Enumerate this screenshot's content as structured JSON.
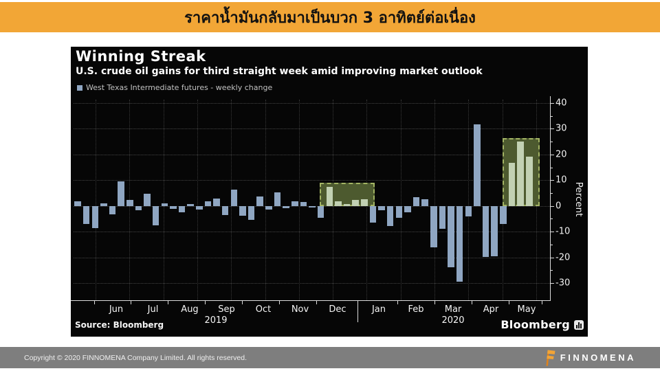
{
  "banner": {
    "title": "ราคาน้ำมันกลับมาเป็นบวก 3 อาทิตย์ต่อเนื่อง",
    "bg_color": "#F2A636"
  },
  "chart": {
    "title": "Winning Streak",
    "subtitle": "U.S. crude oil gains for third straight week amid improving market outlook",
    "legend_label": "West Texas Intermediate futures - weekly change",
    "source": "Source: Bloomberg",
    "brand": "Bloomberg",
    "brand_icon": "bloomberg-terminal-icon",
    "y_axis_label": "Percent"
  },
  "chart_data": {
    "type": "bar",
    "title": "Winning Streak",
    "subtitle": "U.S. crude oil gains for third straight week amid improving market outlook",
    "series_name": "West Texas Intermediate futures - weekly change",
    "xlabel": "",
    "ylabel": "Percent",
    "ylim": [
      -33,
      42
    ],
    "yticks": [
      40,
      30,
      20,
      10,
      0,
      -10,
      -20,
      -30
    ],
    "yticks_minor": [
      35,
      25,
      15,
      5,
      -5,
      -15,
      -25
    ],
    "grid": true,
    "x_months": [
      "Jun",
      "Jul",
      "Aug",
      "Sep",
      "Oct",
      "Nov",
      "Dec",
      "Jan",
      "Feb",
      "Mar",
      "Apr",
      "May"
    ],
    "year_labels": [
      "2019",
      "2020"
    ],
    "values_weekly_pct_change": [
      1.8,
      -6.9,
      -8.7,
      1.0,
      -3.4,
      9.5,
      2.4,
      -1.6,
      4.7,
      -7.6,
      1.1,
      -1.2,
      -2.5,
      0.8,
      -1.5,
      1.9,
      2.9,
      -3.5,
      6.3,
      -3.8,
      -5.5,
      3.7,
      -1.5,
      5.2,
      -1.0,
      1.9,
      1.5,
      -0.5,
      -4.5,
      7.4,
      1.8,
      0.6,
      2.4,
      2.6,
      -6.5,
      -1.8,
      -7.8,
      -4.7,
      -2.5,
      3.3,
      2.5,
      -16.2,
      -8.9,
      -23.8,
      -29.5,
      -4.1,
      31.8,
      -19.8,
      -19.5,
      -7.1,
      16.8,
      25.1,
      19.1
    ],
    "highlight_ranges": [
      {
        "start_index": 29,
        "end_index": 33,
        "box_top_value": 9.0,
        "meaning": "Dec 2019 winning streak"
      },
      {
        "start_index": 50,
        "end_index": 52,
        "box_top_value": 26.3,
        "meaning": "May 2020 winning streak - 3 straight weekly gains"
      }
    ],
    "colors": {
      "bar": "#8FA6C2",
      "highlight_bar": "#C2D1B3",
      "highlight_box_fill": "#4D5A2F",
      "highlight_box_border": "#A3B464",
      "background": "#060606"
    },
    "legend_position": "top-left"
  },
  "footer": {
    "copyright": "Copyright © 2020 FINNOMENA Company Limited. All rights reserved.",
    "brand": "FINNOMENA"
  }
}
